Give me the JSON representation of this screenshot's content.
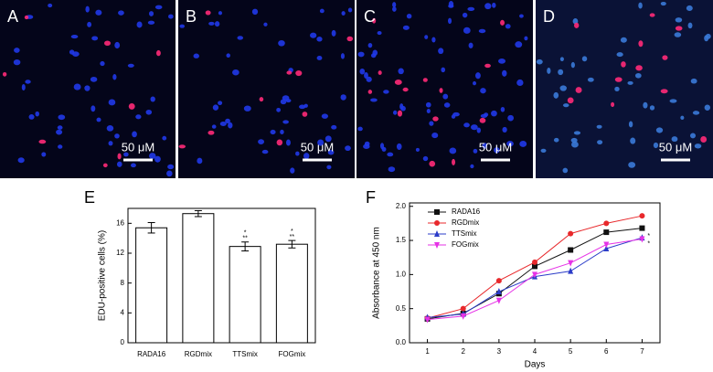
{
  "panels": [
    {
      "label": "A",
      "scale_bar": "50 μM"
    },
    {
      "label": "B",
      "scale_bar": "50 μM"
    },
    {
      "label": "C",
      "scale_bar": "50 μM"
    },
    {
      "label": "D",
      "scale_bar": "50 μM"
    }
  ],
  "chart_data": [
    {
      "type": "bar",
      "label": "E",
      "y_label": "EDU-positive cells (%)",
      "categories": [
        "RADA16",
        "RGDmix",
        "TTSmix",
        "FOGmix"
      ],
      "values": [
        15.4,
        17.3,
        12.9,
        13.2
      ],
      "errors": [
        0.7,
        0.4,
        0.6,
        0.5
      ],
      "value_annotations": [
        null,
        null,
        [
          "*",
          "**"
        ],
        [
          "*",
          "**"
        ]
      ],
      "color": "#ffffff",
      "ylim": [
        0,
        18
      ],
      "yticks": [
        0,
        4,
        8,
        12,
        16
      ]
    },
    {
      "type": "line",
      "label": "F",
      "x_label": "Days",
      "y_label": "Absorbance at 450 nm",
      "x": [
        1,
        2,
        3,
        4,
        5,
        6,
        7
      ],
      "xlim": [
        0.5,
        7.5
      ],
      "xticks": [
        1,
        2,
        3,
        4,
        5,
        6,
        7
      ],
      "ylim": [
        0,
        2.05
      ],
      "yticks": [
        {
          "value": 0,
          "label": "0.0"
        },
        0.5,
        {
          "value": 1,
          "label": "1.0"
        },
        1.5,
        {
          "value": 2,
          "label": "2.0"
        }
      ],
      "legend": "upper left",
      "series": [
        {
          "name": "RADA16",
          "color": "#111111",
          "marker": "square",
          "values": [
            0.35,
            0.43,
            0.72,
            1.12,
            1.36,
            1.62,
            1.68
          ]
        },
        {
          "name": "RGDmix",
          "color": "#e8282b",
          "marker": "circle",
          "values": [
            0.36,
            0.5,
            0.91,
            1.18,
            1.6,
            1.75,
            1.86
          ]
        },
        {
          "name": "TTSmix",
          "color": "#2b3cc8",
          "marker": "triangle-up",
          "values": [
            0.37,
            0.42,
            0.75,
            0.97,
            1.05,
            1.38,
            1.54
          ],
          "end_annotation": "*"
        },
        {
          "name": "FOGmix",
          "color": "#e632e6",
          "marker": "triangle-down",
          "values": [
            0.34,
            0.39,
            0.62,
            1.0,
            1.17,
            1.44,
            1.52
          ],
          "end_annotation": "*"
        }
      ]
    }
  ]
}
